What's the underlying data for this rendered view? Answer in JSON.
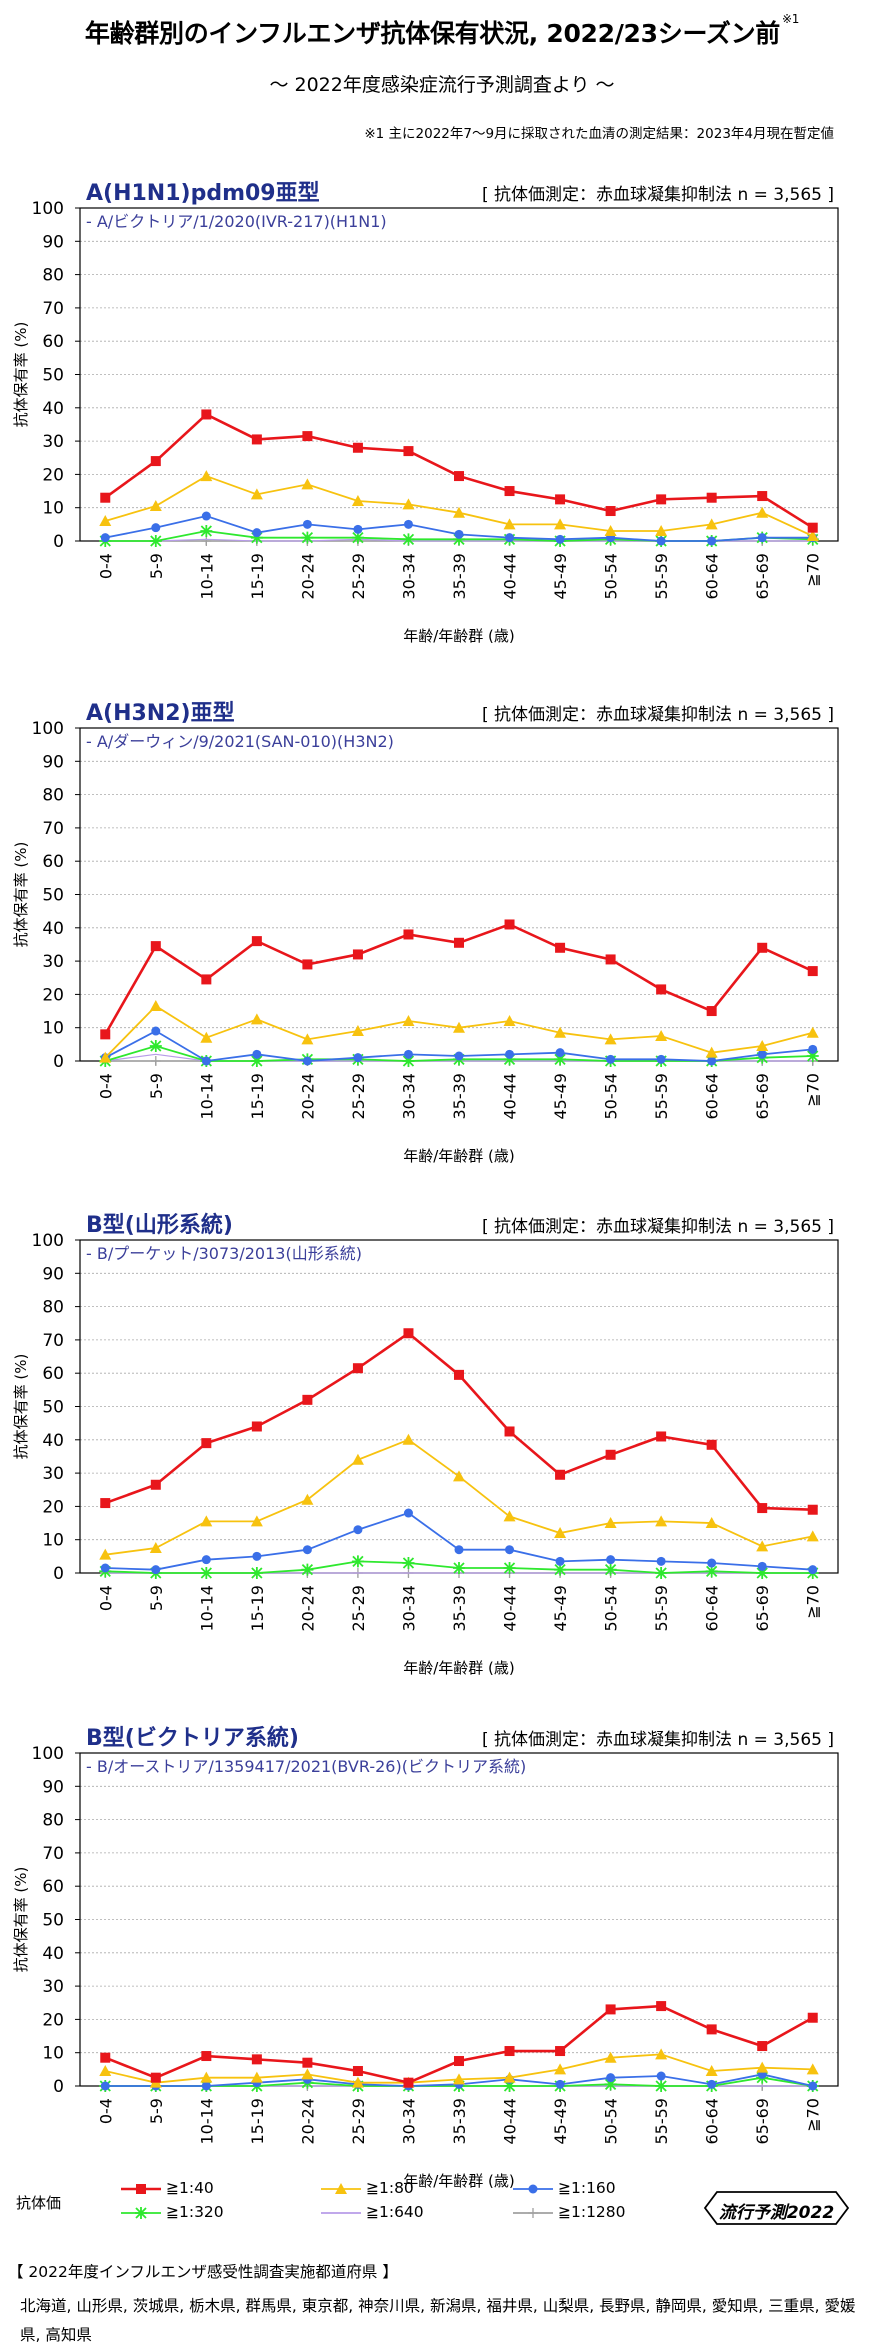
{
  "header": {
    "title": "年齢群別のインフルエンザ抗体保有状況, 2022/23シーズン前",
    "title_note": "※1",
    "subtitle": "～ 2022年度感染症流行予測調査より ～",
    "footnote": "※1 主に2022年7～9月に採取された血清の測定結果：2023年4月現在暫定値"
  },
  "legend": {
    "title": "抗体価",
    "items": [
      {
        "label": "≧1:40",
        "color": "#e8161b",
        "marker": "square"
      },
      {
        "label": "≧1:80",
        "color": "#f7c20f",
        "marker": "triangle"
      },
      {
        "label": "≧1:160",
        "color": "#3a6fe8",
        "marker": "circle"
      },
      {
        "label": "≧1:320",
        "color": "#2ee82e",
        "marker": "star"
      },
      {
        "label": "≧1:640",
        "color": "#b79ce8",
        "marker": "none"
      },
      {
        "label": "≧1:1280",
        "color": "#a0a0a0",
        "marker": "plus"
      }
    ]
  },
  "badge": {
    "label": "流行予測2022"
  },
  "prefectures": {
    "title": "【 2022年度インフルエンザ感受性調査実施都道府県 】",
    "list": "北海道, 山形県, 茨城県, 栃木県, 群馬県, 東京都, 神奈川県, 新潟県, 福井県, 山梨県, 長野県, 静岡県, 愛知県, 三重県, 愛媛県, 高知県"
  },
  "chart_data": [
    {
      "type": "line",
      "title": "A(H1N1)pdm09亜型",
      "method": "[ 抗体価測定：赤血球凝集抑制法 n = 3,565 ]",
      "strain": "- A/ビクトリア/1/2020(IVR-217)(H1N1)",
      "xlabel": "年齢/年齢群 (歳)",
      "ylabel": "抗体保有率 (%)",
      "ylim": [
        0,
        100
      ],
      "yticks": [
        0,
        10,
        20,
        30,
        40,
        50,
        60,
        70,
        80,
        90,
        100
      ],
      "categories": [
        "0-4",
        "5-9",
        "10-14",
        "15-19",
        "20-24",
        "25-29",
        "30-34",
        "35-39",
        "40-44",
        "45-49",
        "50-54",
        "55-59",
        "60-64",
        "65-69",
        "≧70"
      ],
      "series": [
        {
          "name": "≧1:40",
          "values": [
            13,
            24,
            38,
            30.5,
            31.5,
            28,
            27,
            19.5,
            15,
            12.5,
            9,
            12.5,
            13,
            13.5,
            4
          ]
        },
        {
          "name": "≧1:80",
          "values": [
            6,
            10.5,
            19.5,
            14,
            17,
            12,
            11,
            8.5,
            5,
            5,
            3,
            3,
            5,
            8.5,
            1.5
          ]
        },
        {
          "name": "≧1:160",
          "values": [
            1,
            4,
            7.5,
            2.5,
            5,
            3.5,
            5,
            2,
            1,
            0.5,
            1,
            0,
            0,
            1,
            1
          ]
        },
        {
          "name": "≧1:320",
          "values": [
            0,
            0,
            3,
            1,
            1,
            1,
            0.5,
            0.5,
            0.5,
            0,
            0.5,
            0,
            0,
            1,
            0.5
          ]
        },
        {
          "name": "≧1:640",
          "values": [
            0,
            0,
            0.5,
            0,
            0,
            0.5,
            0,
            0,
            0,
            0,
            0,
            0,
            0,
            0,
            0
          ]
        },
        {
          "name": "≧1:1280",
          "values": [
            0,
            0,
            0,
            0,
            0,
            0,
            0,
            0,
            0,
            0,
            0,
            0,
            0,
            0,
            0
          ]
        }
      ]
    },
    {
      "type": "line",
      "title": "A(H3N2)亜型",
      "method": "[ 抗体価測定：赤血球凝集抑制法 n = 3,565 ]",
      "strain": "- A/ダーウィン/9/2021(SAN-010)(H3N2)",
      "xlabel": "年齢/年齢群 (歳)",
      "ylabel": "抗体保有率 (%)",
      "ylim": [
        0,
        100
      ],
      "yticks": [
        0,
        10,
        20,
        30,
        40,
        50,
        60,
        70,
        80,
        90,
        100
      ],
      "categories": [
        "0-4",
        "5-9",
        "10-14",
        "15-19",
        "20-24",
        "25-29",
        "30-34",
        "35-39",
        "40-44",
        "45-49",
        "50-54",
        "55-59",
        "60-64",
        "65-69",
        "≧70"
      ],
      "series": [
        {
          "name": "≧1:40",
          "values": [
            8,
            34.5,
            24.5,
            36,
            29,
            32,
            38,
            35.5,
            41,
            34,
            30.5,
            21.5,
            15,
            34,
            27
          ]
        },
        {
          "name": "≧1:80",
          "values": [
            1,
            16.5,
            7,
            12.5,
            6.5,
            9,
            12,
            10,
            12,
            8.5,
            6.5,
            7.5,
            2.5,
            4.5,
            8.5
          ]
        },
        {
          "name": "≧1:160",
          "values": [
            1,
            9,
            0,
            2,
            0,
            1,
            2,
            1.5,
            2,
            2.5,
            0.5,
            0.5,
            0,
            2,
            3.5
          ]
        },
        {
          "name": "≧1:320",
          "values": [
            0,
            4.5,
            0,
            0,
            0.5,
            0.5,
            0,
            0.5,
            0.5,
            0.5,
            0,
            0,
            0,
            1,
            1.5
          ]
        },
        {
          "name": "≧1:640",
          "values": [
            0,
            2,
            0,
            0,
            0,
            0,
            0,
            0,
            0,
            0,
            0,
            0,
            0,
            0,
            0
          ]
        },
        {
          "name": "≧1:1280",
          "values": [
            0,
            0,
            0,
            0,
            0,
            0,
            0,
            0,
            0,
            0,
            0,
            0,
            0,
            0,
            0
          ]
        }
      ]
    },
    {
      "type": "line",
      "title": "B型(山形系統)",
      "method": "[ 抗体価測定：赤血球凝集抑制法 n = 3,565 ]",
      "strain": "- B/プーケット/3073/2013(山形系統)",
      "xlabel": "年齢/年齢群 (歳)",
      "ylabel": "抗体保有率 (%)",
      "ylim": [
        0,
        100
      ],
      "yticks": [
        0,
        10,
        20,
        30,
        40,
        50,
        60,
        70,
        80,
        90,
        100
      ],
      "categories": [
        "0-4",
        "5-9",
        "10-14",
        "15-19",
        "20-24",
        "25-29",
        "30-34",
        "35-39",
        "40-44",
        "45-49",
        "50-54",
        "55-59",
        "60-64",
        "65-69",
        "≧70"
      ],
      "series": [
        {
          "name": "≧1:40",
          "values": [
            21,
            26.5,
            39,
            44,
            52,
            61.5,
            72,
            59.5,
            42.5,
            29.5,
            35.5,
            41,
            38.5,
            19.5,
            19
          ]
        },
        {
          "name": "≧1:80",
          "values": [
            5.5,
            7.5,
            15.5,
            15.5,
            22,
            34,
            40,
            29,
            17,
            12,
            15,
            15.5,
            15,
            8,
            11
          ]
        },
        {
          "name": "≧1:160",
          "values": [
            1.5,
            1,
            4,
            5,
            7,
            13,
            18,
            7,
            7,
            3.5,
            4,
            3.5,
            3,
            2,
            1
          ]
        },
        {
          "name": "≧1:320",
          "values": [
            0.5,
            0,
            0,
            0,
            1,
            3.5,
            3,
            1.5,
            1.5,
            1,
            1,
            0,
            0.5,
            0,
            0
          ]
        },
        {
          "name": "≧1:640",
          "values": [
            0,
            0,
            0,
            0,
            0,
            0,
            0,
            0,
            0,
            0,
            0,
            0,
            0,
            0,
            0
          ]
        },
        {
          "name": "≧1:1280",
          "values": [
            0,
            0,
            0,
            0,
            0,
            0,
            0,
            0,
            0,
            0,
            0,
            0,
            0,
            0,
            0
          ]
        }
      ]
    },
    {
      "type": "line",
      "title": "B型(ビクトリア系統)",
      "method": "[ 抗体価測定：赤血球凝集抑制法 n = 3,565 ]",
      "strain": "- B/オーストリア/1359417/2021(BVR-26)(ビクトリア系統)",
      "xlabel": "年齢/年齢群 (歳)",
      "ylabel": "抗体保有率 (%)",
      "ylim": [
        0,
        100
      ],
      "yticks": [
        0,
        10,
        20,
        30,
        40,
        50,
        60,
        70,
        80,
        90,
        100
      ],
      "categories": [
        "0-4",
        "5-9",
        "10-14",
        "15-19",
        "20-24",
        "25-29",
        "30-34",
        "35-39",
        "40-44",
        "45-49",
        "50-54",
        "55-59",
        "60-64",
        "65-69",
        "≧70"
      ],
      "series": [
        {
          "name": "≧1:40",
          "values": [
            8.5,
            2.5,
            9,
            8,
            7,
            4.5,
            1,
            7.5,
            10.5,
            10.5,
            23,
            24,
            17,
            12,
            20.5
          ]
        },
        {
          "name": "≧1:80",
          "values": [
            4.5,
            1,
            2.5,
            2.5,
            3.5,
            1,
            1,
            2,
            2.5,
            5,
            8.5,
            9.5,
            4.5,
            5.5,
            5
          ]
        },
        {
          "name": "≧1:160",
          "values": [
            0,
            0,
            0,
            1,
            2,
            0.5,
            0,
            0.5,
            2,
            0.5,
            2.5,
            3,
            0.5,
            3.5,
            0
          ]
        },
        {
          "name": "≧1:320",
          "values": [
            0,
            0,
            0,
            0,
            1,
            0,
            0,
            0,
            0,
            0,
            0.5,
            0,
            0,
            2.5,
            0
          ]
        },
        {
          "name": "≧1:640",
          "values": [
            0,
            0,
            0,
            0,
            0,
            0,
            0,
            0,
            0,
            0,
            0,
            0,
            0,
            0,
            0
          ]
        },
        {
          "name": "≧1:1280",
          "values": [
            0,
            0,
            0,
            0,
            0,
            0,
            0,
            0,
            0,
            0,
            0,
            0,
            0,
            0,
            0
          ]
        }
      ]
    }
  ]
}
